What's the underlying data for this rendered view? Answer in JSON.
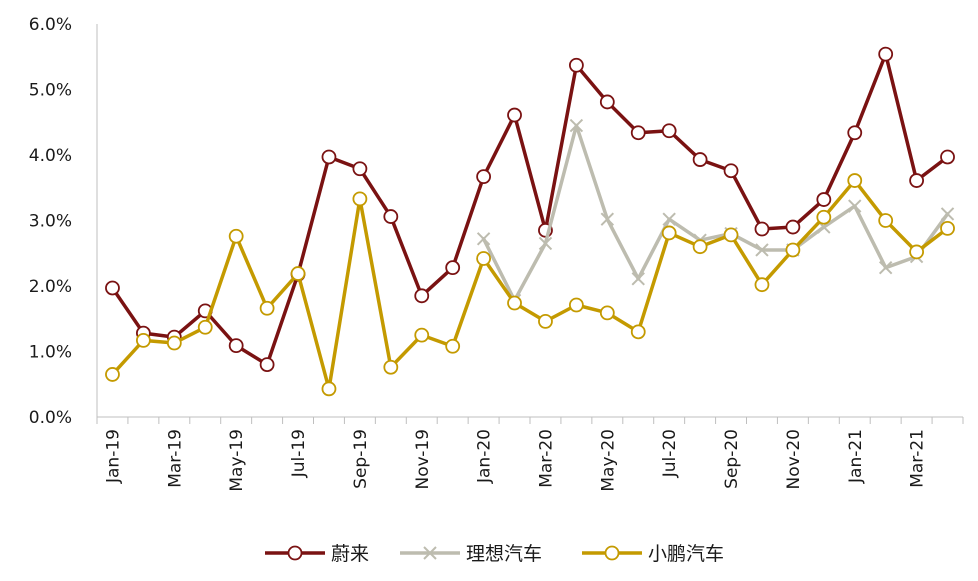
{
  "chart_data": {
    "type": "line",
    "title": "",
    "xlabel": "",
    "ylabel": "",
    "ylim": [
      0,
      6
    ],
    "y_ticks": [
      "0.0%",
      "1.0%",
      "2.0%",
      "3.0%",
      "4.0%",
      "5.0%",
      "6.0%"
    ],
    "categories": [
      "Jan-19",
      "Feb-19",
      "Mar-19",
      "Apr-19",
      "May-19",
      "Jun-19",
      "Jul-19",
      "Aug-19",
      "Sep-19",
      "Oct-19",
      "Nov-19",
      "Dec-19",
      "Jan-20",
      "Feb-20",
      "Mar-20",
      "Apr-20",
      "May-20",
      "Jun-20",
      "Jul-20",
      "Aug-20",
      "Sep-20",
      "Oct-20",
      "Nov-20",
      "Dec-20",
      "Jan-21",
      "Feb-21",
      "Mar-21",
      "Apr-21"
    ],
    "x_tick_labels": [
      "Jan-19",
      "Mar-19",
      "May-19",
      "Jul-19",
      "Sep-19",
      "Nov-19",
      "Jan-20",
      "Mar-20",
      "May-20",
      "Jul-20",
      "Sep-20",
      "Nov-20",
      "Jan-21",
      "Mar-21"
    ],
    "grid": false,
    "legend_position": "bottom",
    "series": [
      {
        "name": "蔚来",
        "color": "#7a1212",
        "marker": "circle",
        "values": [
          1.97,
          1.28,
          1.22,
          1.62,
          1.09,
          0.8,
          2.18,
          3.97,
          3.79,
          3.06,
          1.85,
          2.28,
          3.67,
          4.61,
          2.85,
          5.37,
          4.81,
          4.34,
          4.37,
          3.93,
          3.76,
          2.87,
          2.9,
          3.32,
          4.34,
          5.54,
          3.61,
          3.97
        ]
      },
      {
        "name": "理想汽车",
        "color": "#bdbcaf",
        "marker": "x",
        "values": [
          null,
          null,
          null,
          null,
          null,
          null,
          null,
          null,
          null,
          null,
          null,
          null,
          2.72,
          1.78,
          2.65,
          4.45,
          3.02,
          2.11,
          3.02,
          2.7,
          2.8,
          2.55,
          2.55,
          2.9,
          3.22,
          2.28,
          2.45,
          3.1
        ]
      },
      {
        "name": "小鹏汽车",
        "color": "#c49a00",
        "marker": "circle",
        "values": [
          0.65,
          1.17,
          1.13,
          1.37,
          2.76,
          1.66,
          2.19,
          0.43,
          3.33,
          0.76,
          1.25,
          1.08,
          2.42,
          1.74,
          1.46,
          1.71,
          1.59,
          1.3,
          2.81,
          2.6,
          2.78,
          2.02,
          2.55,
          3.05,
          3.61,
          3.0,
          2.52,
          2.88
        ]
      }
    ]
  }
}
